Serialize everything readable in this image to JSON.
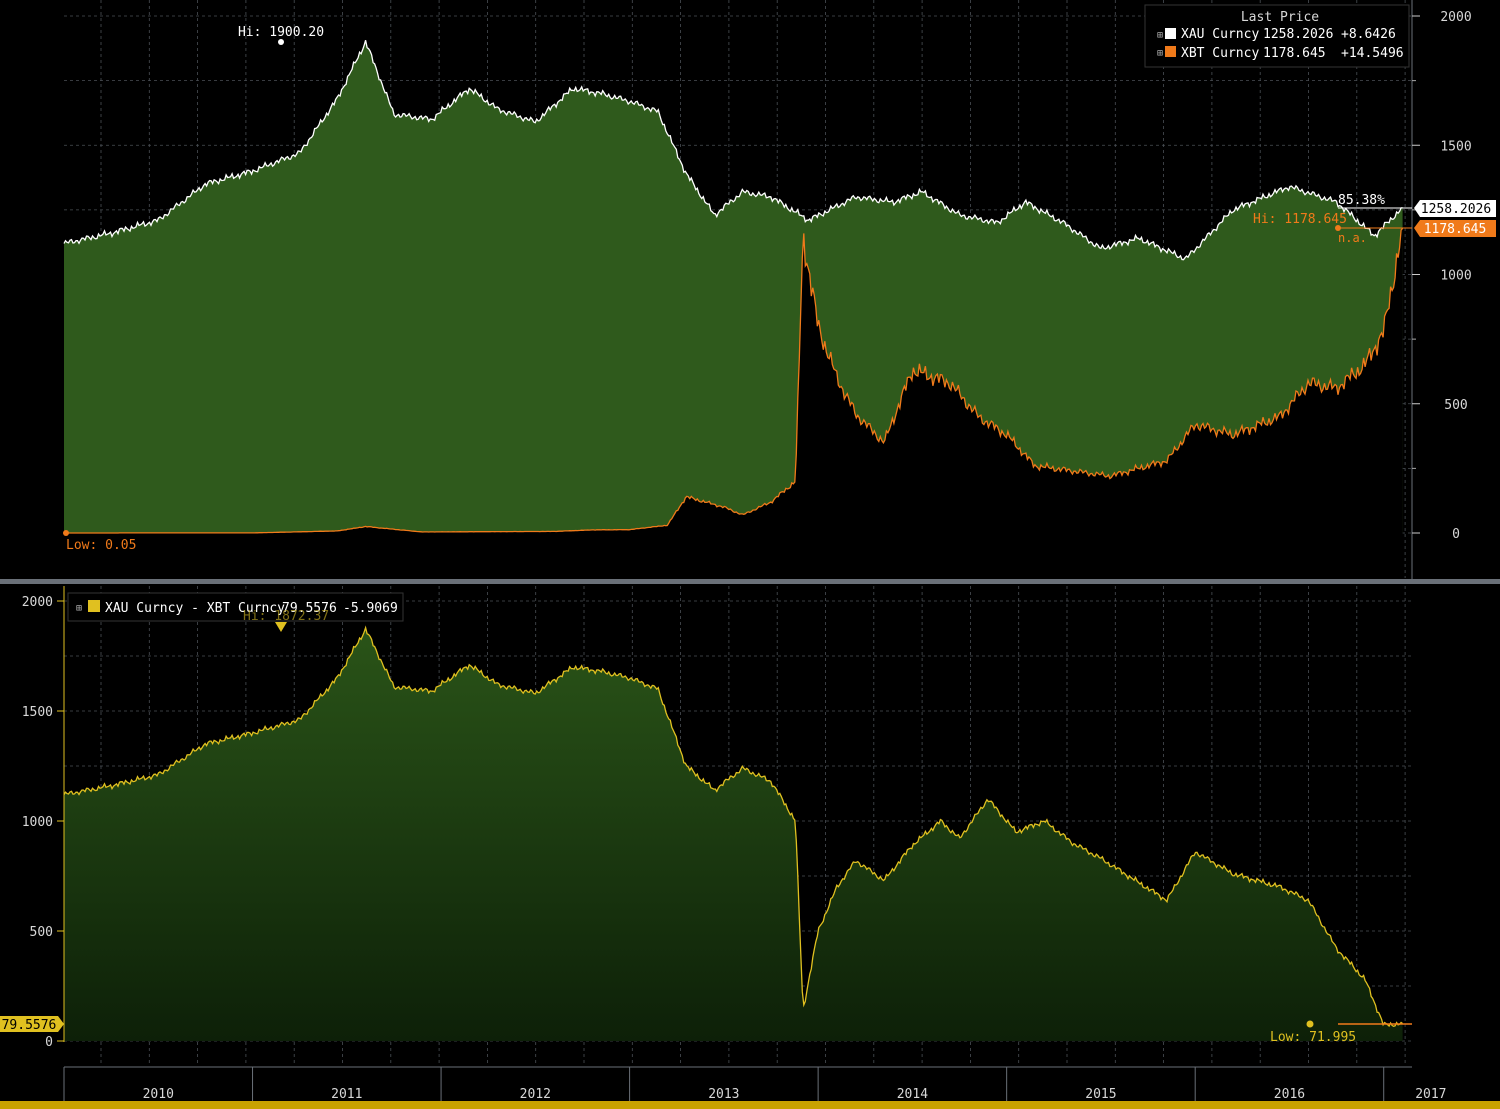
{
  "colors": {
    "background": "#000000",
    "grid": "#4a4f55",
    "gold_line": "#ffffff",
    "gold_fill": "#2f5a1c",
    "btc_line": "#f07a1a",
    "spread_line": "#e0c020",
    "spread_fill_top": "#2a5418",
    "spread_fill_bottom": "#0d2008",
    "divider": "#6a7078",
    "label_white": "#ffffff",
    "axis_text": "#d8d8d8"
  },
  "top_panel": {
    "legend": {
      "header": "Last Price",
      "rows": [
        {
          "icon": "square-white-icon",
          "name": "XAU Curncy",
          "value": "1258.2026",
          "change": "+8.6426"
        },
        {
          "icon": "square-orange-icon",
          "name": "XBT Curncy",
          "value": "1178.645",
          "change": "+14.5496"
        }
      ]
    },
    "y_ticks": [
      "2000",
      "1500",
      "1000",
      "500",
      "0"
    ],
    "annotations": {
      "gold_hi": "Hi: 1900.20",
      "btc_hi": "Hi: 1178.645",
      "btc_low": "Low: 0.05",
      "pct": "85.38%",
      "na": "n.a.",
      "gold_last": "1258.2026",
      "btc_last": "1178.645"
    }
  },
  "bottom_panel": {
    "legend": {
      "icon": "square-yellow-icon",
      "name": "XAU Curncy - XBT Curncy",
      "value": "79.5576",
      "change": "-5.9069"
    },
    "y_ticks": [
      "2000",
      "1500",
      "1000",
      "500",
      "0"
    ],
    "annotations": {
      "hi": "Hi: 1872.37",
      "low": "Low: 71.995",
      "last": "79.5576"
    }
  },
  "x_axis_labels": [
    "2010",
    "2011",
    "2012",
    "2013",
    "2014",
    "2015",
    "2016",
    "2017"
  ],
  "chart_data": [
    {
      "type": "area",
      "series": [
        {
          "name": "XAU Curncy",
          "x": [
            2010.0,
            2010.25,
            2010.5,
            2010.75,
            2011.0,
            2011.25,
            2011.45,
            2011.6,
            2011.75,
            2011.95,
            2012.15,
            2012.3,
            2012.5,
            2012.7,
            2012.85,
            2013.0,
            2013.15,
            2013.3,
            2013.45,
            2013.6,
            2013.75,
            2013.95,
            2014.2,
            2014.4,
            2014.55,
            2014.75,
            2014.95,
            2015.1,
            2015.3,
            2015.5,
            2015.7,
            2015.95,
            2016.2,
            2016.5,
            2016.75,
            2016.95,
            2017.1
          ],
          "values": [
            1120,
            1160,
            1210,
            1350,
            1400,
            1470,
            1680,
            1900,
            1620,
            1600,
            1720,
            1640,
            1590,
            1720,
            1700,
            1670,
            1630,
            1390,
            1230,
            1320,
            1300,
            1210,
            1300,
            1280,
            1320,
            1230,
            1200,
            1280,
            1200,
            1100,
            1140,
            1060,
            1250,
            1340,
            1280,
            1150,
            1258.2
          ]
        },
        {
          "name": "XBT Curncy",
          "x": [
            2010.0,
            2010.5,
            2010.8,
            2011.0,
            2011.45,
            2011.6,
            2011.9,
            2012.2,
            2012.6,
            2012.8,
            2013.0,
            2013.2,
            2013.3,
            2013.5,
            2013.6,
            2013.75,
            2013.88,
            2013.92,
            2014.0,
            2014.1,
            2014.2,
            2014.35,
            2014.5,
            2014.7,
            2014.85,
            2015.0,
            2015.15,
            2015.35,
            2015.55,
            2015.7,
            2015.85,
            2016.0,
            2016.2,
            2016.45,
            2016.6,
            2016.75,
            2016.9,
            2017.0,
            2017.1
          ],
          "values": [
            0.05,
            0.3,
            0.5,
            0.4,
            8,
            25,
            4,
            5,
            6,
            12,
            13,
            30,
            140,
            100,
            70,
            120,
            200,
            1150,
            800,
            600,
            460,
            350,
            630,
            580,
            450,
            380,
            260,
            240,
            220,
            250,
            280,
            420,
            380,
            450,
            580,
            560,
            650,
            780,
            1178.645
          ]
        }
      ],
      "ylim": [
        0,
        2000
      ]
    },
    {
      "type": "area",
      "series": [
        {
          "name": "XAU Curncy - XBT Curncy",
          "x": [
            2010.0,
            2010.25,
            2010.5,
            2010.75,
            2011.0,
            2011.25,
            2011.45,
            2011.6,
            2011.75,
            2011.95,
            2012.15,
            2012.3,
            2012.5,
            2012.7,
            2012.85,
            2013.0,
            2013.15,
            2013.3,
            2013.45,
            2013.6,
            2013.75,
            2013.88,
            2013.92,
            2014.0,
            2014.1,
            2014.2,
            2014.35,
            2014.5,
            2014.65,
            2014.75,
            2014.9,
            2015.05,
            2015.2,
            2015.35,
            2015.5,
            2015.7,
            2015.85,
            2016.0,
            2016.2,
            2016.45,
            2016.6,
            2016.75,
            2016.9,
            2017.0,
            2017.1
          ],
          "values": [
            1120,
            1160,
            1210,
            1350,
            1400,
            1460,
            1650,
            1872.37,
            1610,
            1590,
            1710,
            1620,
            1580,
            1700,
            1680,
            1650,
            1600,
            1250,
            1140,
            1240,
            1180,
            1000,
            140,
            500,
            700,
            820,
            730,
            890,
            1000,
            920,
            1100,
            950,
            1000,
            900,
            830,
            720,
            640,
            860,
            760,
            700,
            640,
            420,
            280,
            71.995,
            79.5576
          ]
        }
      ],
      "ylim": [
        0,
        2000
      ]
    }
  ]
}
